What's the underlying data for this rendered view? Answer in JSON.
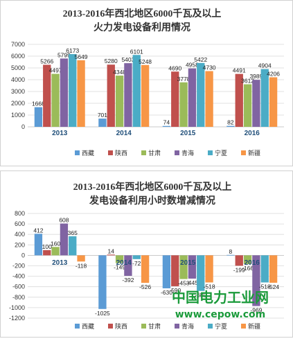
{
  "chart_data": [
    {
      "type": "bar",
      "title_line1": "2013-2016年西北地区6000千瓦及以上",
      "title_line2": "火力发电设备利用情况",
      "categories": [
        "2013",
        "2014",
        "2015",
        "2016"
      ],
      "ylim": [
        0,
        7000
      ],
      "yticks": [
        0,
        1000,
        2000,
        3000,
        4000,
        5000,
        6000,
        7000
      ],
      "grid": true,
      "legend_position": "bottom",
      "series": [
        {
          "name": "西藏",
          "color": "#5b9bd5",
          "values": [
            1668,
            701,
            74,
            82
          ]
        },
        {
          "name": "陕西",
          "color": "#c0504d",
          "values": [
            5266,
            5280,
            4690,
            4491
          ]
        },
        {
          "name": "甘肃",
          "color": "#9bbb59",
          "values": [
            4497,
            4348,
            3778,
            3612
          ]
        },
        {
          "name": "青海",
          "color": "#8064a2",
          "values": [
            5799,
            5403,
            4958,
            3989
          ]
        },
        {
          "name": "宁夏",
          "color": "#4bacc6",
          "values": [
            6173,
            6101,
            5422,
            4904
          ]
        },
        {
          "name": "新疆",
          "color": "#f79646",
          "values": [
            5649,
            5248,
            4730,
            4206
          ]
        }
      ]
    },
    {
      "type": "bar",
      "title_line1": "2013-2016年西北地区6000千瓦及以上",
      "title_line2": "发电设备利用小时数增减情况",
      "categories": [
        "2013",
        "2014",
        "2015",
        "2016"
      ],
      "ylim": [
        -1200,
        800
      ],
      "yticks": [
        800,
        600,
        400,
        200,
        0,
        -200,
        -400,
        -600,
        -800,
        -1000,
        -1200
      ],
      "grid": true,
      "legend_position": "bottom",
      "series": [
        {
          "name": "西藏",
          "color": "#5b9bd5",
          "values": [
            412,
            -1025,
            -630,
            8
          ]
        },
        {
          "name": "陕西",
          "color": "#c0504d",
          "values": [
            100,
            14,
            -590,
            -199
          ]
        },
        {
          "name": "甘肃",
          "color": "#9bbb59",
          "values": [
            160,
            -149,
            -453,
            -166
          ]
        },
        {
          "name": "青海",
          "color": "#8064a2",
          "values": [
            608,
            -392,
            -445,
            -969
          ]
        },
        {
          "name": "宁夏",
          "color": "#4bacc6",
          "values": [
            365,
            -72,
            -680,
            -518
          ]
        },
        {
          "name": "新疆",
          "color": "#f79646",
          "values": [
            -118,
            -526,
            -518,
            -524
          ]
        }
      ]
    }
  ],
  "watermark": {
    "text_cn": "中国电力工业网",
    "url": "www.cepow.com",
    "color": "#1a9a3a"
  }
}
